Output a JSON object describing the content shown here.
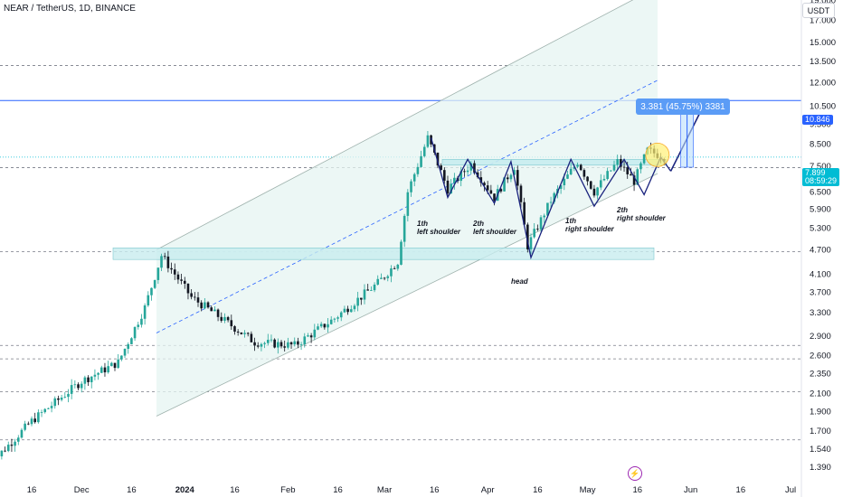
{
  "header": {
    "title": "NEAR / TetherUS, 1D, BINANCE",
    "currency": "USDT"
  },
  "price_axis": {
    "ticks": [
      "19.000",
      "17.000",
      "15.000",
      "13.500",
      "12.000",
      "10.500",
      "9.500",
      "8.500",
      "7.500",
      "6.500",
      "5.900",
      "5.300",
      "4.700",
      "4.100",
      "3.700",
      "3.300",
      "2.900",
      "2.600",
      "2.350",
      "2.100",
      "1.900",
      "1.700",
      "1.540",
      "1.390"
    ],
    "current_price": "7.899",
    "countdown": "08:59:29",
    "target_label": "10.846"
  },
  "time_axis": {
    "ticks": [
      "16",
      "Dec",
      "16",
      "2024",
      "16",
      "Feb",
      "16",
      "Mar",
      "16",
      "Apr",
      "16",
      "May",
      "16",
      "Jun",
      "16",
      "Jul"
    ]
  },
  "annotations": {
    "measure": "3.381 (45.75%) 3381",
    "left_shoulder_1": [
      "1th",
      "left shoulder"
    ],
    "left_shoulder_2": [
      "2th",
      "left shoulder"
    ],
    "head": "head",
    "right_shoulder_1": [
      "1th",
      "right shoulder"
    ],
    "right_shoulder_2": [
      "2th",
      "right shoulder"
    ]
  },
  "colors": {
    "up": "#26a69a",
    "down": "#131722",
    "channel_fill": "#e6f4f1",
    "zone_fill": "#c8ecef",
    "target_line": "#2962ff",
    "current_price": "#00bcd4",
    "path": "#1a237e"
  },
  "chart_data": {
    "type": "candlestick",
    "symbol": "NEAR / TetherUS",
    "interval": "1D",
    "exchange": "BINANCE",
    "scale": "log",
    "ylim": [
      1.3,
      21
    ],
    "approx_close_path": [
      {
        "date": "2023-11-03",
        "close": 1.4
      },
      {
        "date": "2023-11-16",
        "close": 1.8
      },
      {
        "date": "2023-12-01",
        "close": 2.25
      },
      {
        "date": "2023-12-12",
        "close": 2.5
      },
      {
        "date": "2023-12-20",
        "close": 3.4
      },
      {
        "date": "2023-12-25",
        "close": 4.55
      },
      {
        "date": "2024-01-03",
        "close": 3.6
      },
      {
        "date": "2024-01-12",
        "close": 3.2
      },
      {
        "date": "2024-01-22",
        "close": 2.8
      },
      {
        "date": "2024-02-03",
        "close": 2.75
      },
      {
        "date": "2024-02-15",
        "close": 3.2
      },
      {
        "date": "2024-02-28",
        "close": 3.9
      },
      {
        "date": "2024-03-05",
        "close": 4.4
      },
      {
        "date": "2024-03-08",
        "close": 6.5
      },
      {
        "date": "2024-03-14",
        "close": 8.8
      },
      {
        "date": "2024-03-20",
        "close": 6.6
      },
      {
        "date": "2024-03-27",
        "close": 7.6
      },
      {
        "date": "2024-04-03",
        "close": 6.3
      },
      {
        "date": "2024-04-09",
        "close": 7.5
      },
      {
        "date": "2024-04-13",
        "close": 4.8
      },
      {
        "date": "2024-04-20",
        "close": 6.2
      },
      {
        "date": "2024-04-28",
        "close": 7.7
      },
      {
        "date": "2024-05-03",
        "close": 6.5
      },
      {
        "date": "2024-05-10",
        "close": 7.7
      },
      {
        "date": "2024-05-15",
        "close": 6.9
      },
      {
        "date": "2024-05-19",
        "close": 8.2
      },
      {
        "date": "2024-05-24",
        "close": 7.899
      }
    ],
    "levels": {
      "target": 10.846,
      "current": 7.899,
      "neckline": 7.75,
      "support_zone": [
        4.45,
        4.75
      ]
    },
    "horizontal_dashed_levels": [
      13.2,
      7.45,
      4.65,
      2.75,
      2.55,
      2.12,
      1.62
    ]
  }
}
